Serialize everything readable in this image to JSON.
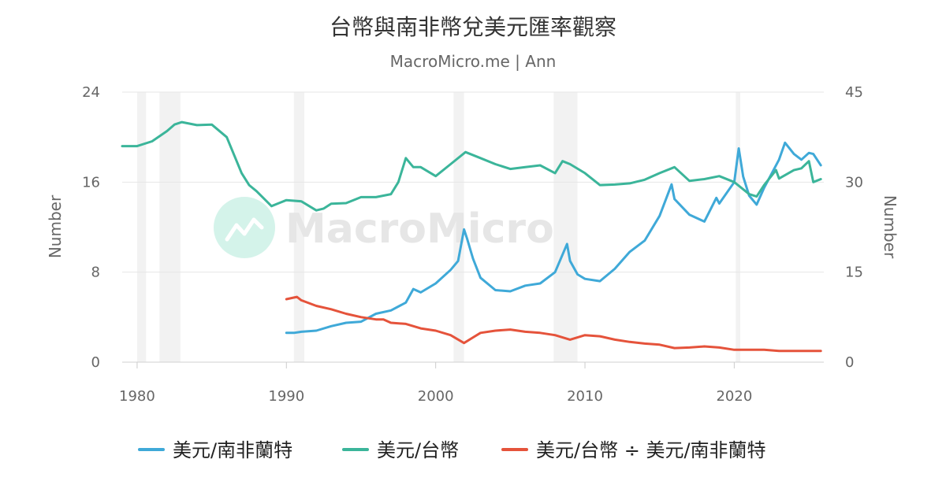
{
  "chart_data": {
    "type": "line",
    "title": "台幣與南非幣兌美元匯率觀察",
    "subtitle": "MacroMicro.me | Ann",
    "watermark": "MacroMicro",
    "x_ticks": [
      "1980",
      "1990",
      "2000",
      "2010",
      "2020"
    ],
    "xlim": [
      1979,
      2026
    ],
    "left_axis": {
      "label": "Number",
      "ticks": [
        "0",
        "8",
        "16",
        "24"
      ],
      "ylim": [
        0,
        24
      ]
    },
    "right_axis": {
      "label": "Number",
      "ticks": [
        "0",
        "15",
        "30",
        "45"
      ],
      "ylim": [
        0,
        45
      ]
    },
    "grid": true,
    "legend_position": "bottom",
    "recession_bands": [
      [
        1980.0,
        1980.6
      ],
      [
        1981.5,
        1982.9
      ],
      [
        1990.5,
        1991.2
      ],
      [
        2001.2,
        2001.9
      ],
      [
        2007.9,
        2009.5
      ],
      [
        2020.1,
        2020.4
      ]
    ],
    "series": [
      {
        "name": "美元/南非蘭特",
        "axis": "left",
        "color": "#3fa9d8",
        "x": [
          1990.0,
          1990.5,
          1991.0,
          1992.0,
          1993.0,
          1994.0,
          1995.0,
          1996.0,
          1997.0,
          1998.0,
          1998.5,
          1999.0,
          2000.0,
          2001.0,
          2001.5,
          2001.9,
          2002.1,
          2002.5,
          2003.0,
          2004.0,
          2005.0,
          2006.0,
          2007.0,
          2008.0,
          2008.8,
          2009.0,
          2009.5,
          2010.0,
          2011.0,
          2012.0,
          2013.0,
          2014.0,
          2015.0,
          2015.8,
          2016.0,
          2016.5,
          2017.0,
          2018.0,
          2018.8,
          2019.0,
          2020.0,
          2020.3,
          2020.6,
          2021.0,
          2021.5,
          2022.0,
          2023.0,
          2023.4,
          2024.0,
          2024.5,
          2025.0,
          2025.3,
          2025.8
        ],
        "values": [
          2.6,
          2.6,
          2.7,
          2.8,
          3.2,
          3.5,
          3.6,
          4.3,
          4.6,
          5.3,
          6.5,
          6.2,
          7.0,
          8.2,
          9.0,
          11.8,
          11.0,
          9.2,
          7.5,
          6.4,
          6.3,
          6.8,
          7.0,
          8.0,
          10.5,
          9.0,
          7.8,
          7.4,
          7.2,
          8.3,
          9.8,
          10.8,
          13.0,
          15.8,
          14.5,
          13.8,
          13.1,
          12.5,
          14.6,
          14.1,
          16.0,
          19.0,
          16.5,
          14.8,
          14.0,
          15.5,
          18.0,
          19.5,
          18.5,
          18.0,
          18.6,
          18.5,
          17.5
        ]
      },
      {
        "name": "美元/台幣",
        "axis": "right",
        "color": "#3bb59a",
        "x": [
          1979.0,
          1980.0,
          1981.0,
          1982.0,
          1982.5,
          1983.0,
          1984.0,
          1985.0,
          1986.0,
          1987.0,
          1987.5,
          1988.0,
          1989.0,
          1989.5,
          1990.0,
          1991.0,
          1992.0,
          1992.5,
          1993.0,
          1994.0,
          1995.0,
          1996.0,
          1997.0,
          1997.5,
          1998.0,
          1998.5,
          1999.0,
          2000.0,
          2001.0,
          2002.0,
          2003.0,
          2004.0,
          2005.0,
          2006.0,
          2007.0,
          2008.0,
          2008.5,
          2009.0,
          2010.0,
          2011.0,
          2012.0,
          2013.0,
          2014.0,
          2015.0,
          2016.0,
          2017.0,
          2018.0,
          2019.0,
          2020.0,
          2021.0,
          2021.5,
          2022.0,
          2022.8,
          2023.0,
          2024.0,
          2024.5,
          2025.0,
          2025.3,
          2025.8
        ],
        "values": [
          36.0,
          36.0,
          36.8,
          38.5,
          39.6,
          40.0,
          39.5,
          39.6,
          37.5,
          31.5,
          29.5,
          28.5,
          26.0,
          26.5,
          27.0,
          26.8,
          25.3,
          25.6,
          26.4,
          26.5,
          27.5,
          27.5,
          28.0,
          30.0,
          34.0,
          32.5,
          32.5,
          31.0,
          33.0,
          35.0,
          34.0,
          33.0,
          32.2,
          32.5,
          32.8,
          31.5,
          33.5,
          33.0,
          31.5,
          29.5,
          29.6,
          29.8,
          30.4,
          31.5,
          32.5,
          30.2,
          30.5,
          31.0,
          30.0,
          28.0,
          27.6,
          29.5,
          32.0,
          30.6,
          32.0,
          32.3,
          33.5,
          30.0,
          30.5
        ]
      },
      {
        "name": "美元/台幣 ÷ 美元/南非蘭特",
        "axis": "left",
        "color": "#e5533b",
        "x": [
          1990.0,
          1990.7,
          1991.0,
          1992.0,
          1993.0,
          1994.0,
          1995.0,
          1996.0,
          1996.5,
          1997.0,
          1998.0,
          1999.0,
          2000.0,
          2001.0,
          2001.9,
          2002.5,
          2003.0,
          2004.0,
          2005.0,
          2006.0,
          2007.0,
          2008.0,
          2009.0,
          2010.0,
          2011.0,
          2012.0,
          2013.0,
          2014.0,
          2015.0,
          2016.0,
          2017.0,
          2018.0,
          2019.0,
          2020.0,
          2021.0,
          2022.0,
          2023.0,
          2024.0,
          2025.0,
          2025.8
        ],
        "values": [
          5.6,
          5.8,
          5.5,
          5.0,
          4.7,
          4.3,
          4.0,
          3.8,
          3.8,
          3.5,
          3.4,
          3.0,
          2.8,
          2.4,
          1.7,
          2.2,
          2.6,
          2.8,
          2.9,
          2.7,
          2.6,
          2.4,
          2.0,
          2.4,
          2.3,
          2.0,
          1.8,
          1.65,
          1.55,
          1.25,
          1.3,
          1.4,
          1.3,
          1.1,
          1.1,
          1.1,
          1.0,
          1.0,
          1.0,
          1.0
        ]
      }
    ]
  }
}
